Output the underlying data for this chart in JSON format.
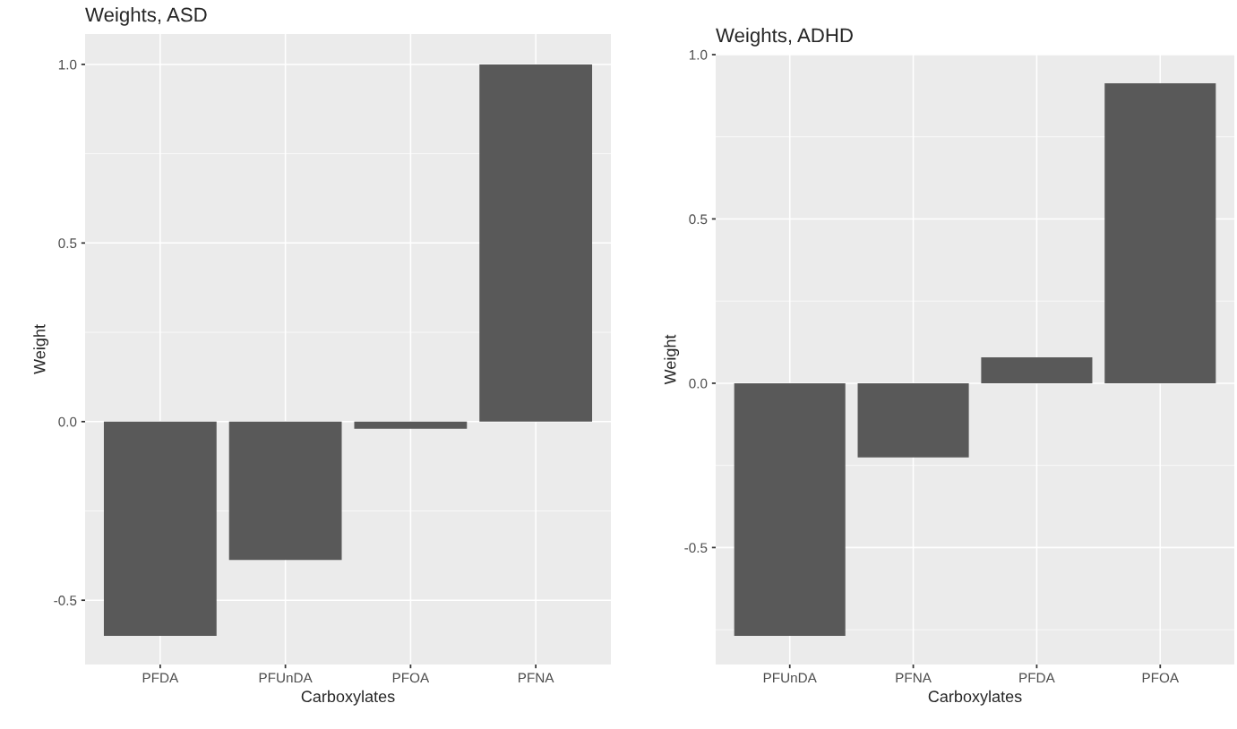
{
  "chart_data": [
    {
      "type": "bar",
      "title": "Weights, ASD",
      "xlabel": "Carboxylates",
      "ylabel": "Weight",
      "categories": [
        "PFDA",
        "PFUnDA",
        "PFOA",
        "PFNA"
      ],
      "values": [
        -0.6,
        -0.387,
        -0.02,
        1.0
      ],
      "color": "#595959",
      "ylim": [
        -0.68,
        1.085
      ],
      "yticks": [
        {
          "value": -0.5,
          "label": "-0.5"
        },
        {
          "value": -0.25,
          "label": null
        },
        {
          "value": 0.0,
          "label": "0.0"
        },
        {
          "value": 0.25,
          "label": null
        },
        {
          "value": 0.5,
          "label": "0.5"
        },
        {
          "value": 0.75,
          "label": null
        },
        {
          "value": 1.0,
          "label": "1.0"
        }
      ],
      "grid": true
    },
    {
      "type": "bar",
      "title": "Weights, ADHD",
      "xlabel": "Carboxylates",
      "ylabel": "Weight",
      "categories": [
        "PFUnDA",
        "PFNA",
        "PFDA",
        "PFOA"
      ],
      "values": [
        -0.769,
        -0.226,
        0.079,
        0.913
      ],
      "color": "#595959",
      "ylim": [
        -0.856,
        1.0
      ],
      "yticks": [
        {
          "value": -0.75,
          "label": null
        },
        {
          "value": -0.5,
          "label": "-0.5"
        },
        {
          "value": -0.25,
          "label": null
        },
        {
          "value": 0.0,
          "label": "0.0"
        },
        {
          "value": 0.25,
          "label": null
        },
        {
          "value": 0.5,
          "label": "0.5"
        },
        {
          "value": 0.75,
          "label": null
        },
        {
          "value": 1.0,
          "label": "1.0"
        }
      ],
      "grid": true
    }
  ]
}
